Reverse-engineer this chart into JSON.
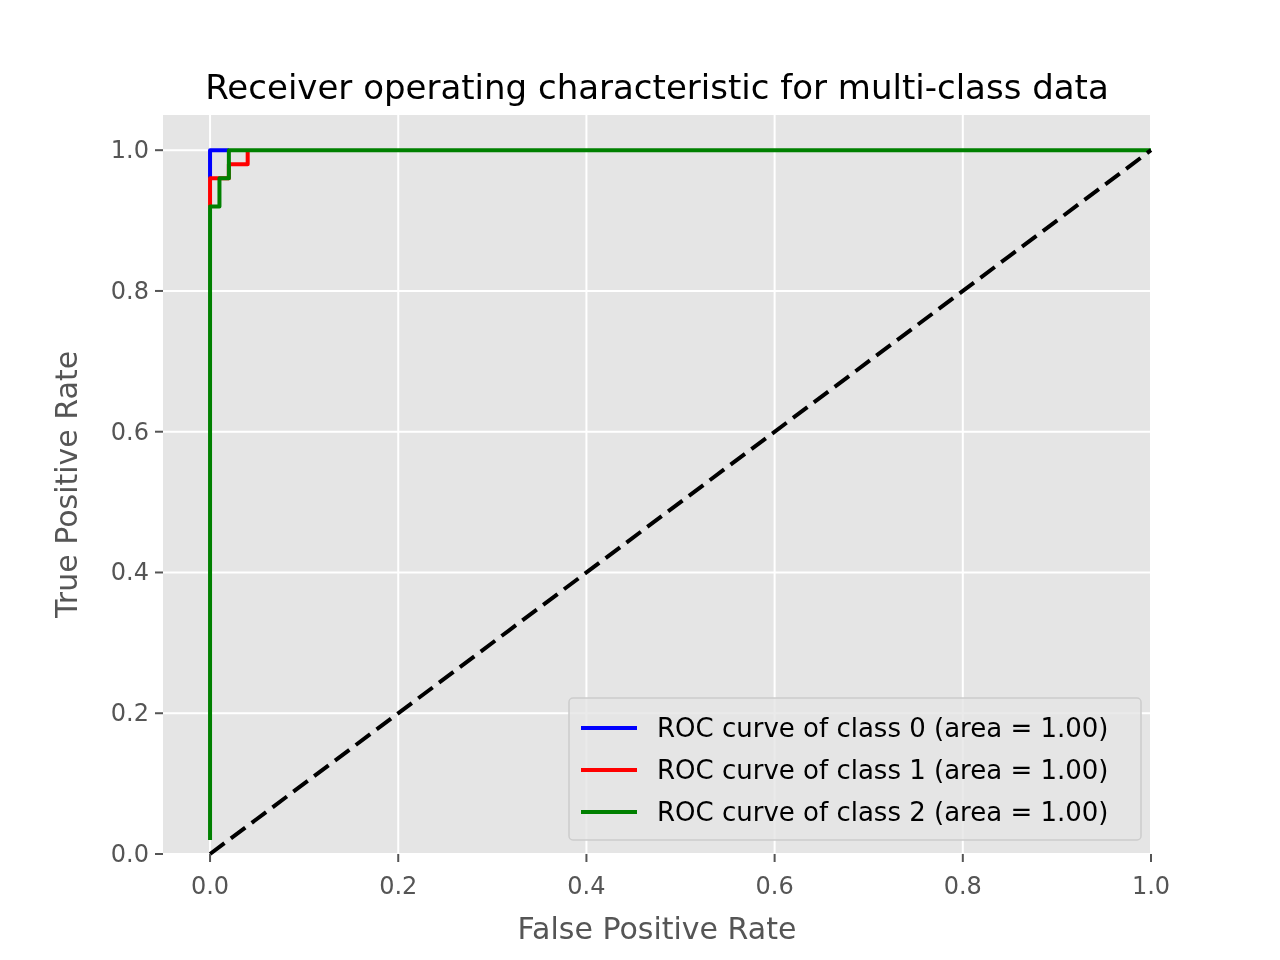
{
  "chart_data": {
    "type": "line",
    "title": "Receiver operating characteristic for multi-class data",
    "xlabel": "False Positive Rate",
    "ylabel": "True Positive Rate",
    "xlim": [
      -0.05,
      1.0
    ],
    "ylim": [
      0.0,
      1.05
    ],
    "xticks": [
      {
        "value": 0,
        "label": "0.0"
      },
      0.2,
      0.4,
      0.6,
      0.8,
      {
        "value": 1,
        "label": "1.0"
      }
    ],
    "yticks": [
      {
        "value": 0,
        "label": "0.0"
      },
      0.2,
      0.4,
      0.6,
      0.8,
      {
        "value": 1,
        "label": "1.0"
      }
    ],
    "grid": true,
    "legend": "bottom right",
    "marker": "none",
    "series": [
      {
        "name": "ROC curve of class 0 (area = 1.00)",
        "color": "#0000ff",
        "x": [
          0,
          0,
          0.02
        ],
        "values": [
          0.96,
          1.0,
          1.0
        ]
      },
      {
        "name": "ROC curve of class 1 (area = 1.00)",
        "color": "#ff0000",
        "x": [
          0,
          0,
          0.02,
          0.02,
          0.04,
          0.04
        ],
        "values": [
          0.92,
          0.96,
          0.96,
          0.98,
          0.98,
          1.0
        ]
      },
      {
        "name": "ROC curve of class 2 (area = 1.00)",
        "color": "#008000",
        "x": [
          0,
          0,
          0.01,
          0.01,
          0.02,
          0.02,
          1
        ],
        "values": [
          0.02,
          0.92,
          0.92,
          0.96,
          0.96,
          1.0,
          1.0
        ]
      },
      {
        "color": "#000000",
        "line_style": "dashed",
        "x": [
          0,
          1
        ],
        "values": [
          0,
          1
        ]
      }
    ]
  }
}
